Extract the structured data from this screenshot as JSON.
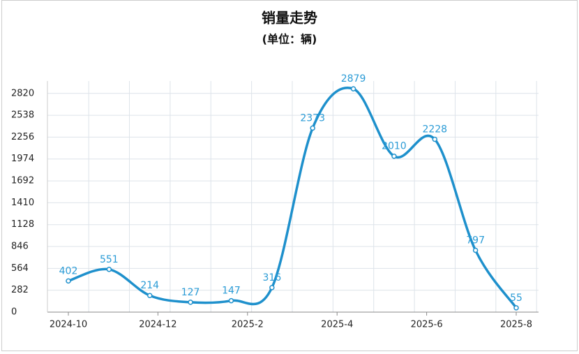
{
  "chart_data": {
    "type": "line",
    "title": "销量走势",
    "subtitle": "(单位：辆)",
    "xticks": [
      "2024-10",
      "2024-12",
      "2025-2",
      "2025-4",
      "2025-6",
      "2025-8"
    ],
    "values": [
      402,
      551,
      214,
      127,
      147,
      316,
      2373,
      2879,
      2010,
      2228,
      797,
      55
    ],
    "color": "#1e90cc",
    "ylim": [
      0,
      2980
    ],
    "yticks": [
      0,
      282,
      564,
      846,
      1128,
      1410,
      1692,
      1974,
      2256,
      2538,
      2820
    ],
    "grid": true
  }
}
